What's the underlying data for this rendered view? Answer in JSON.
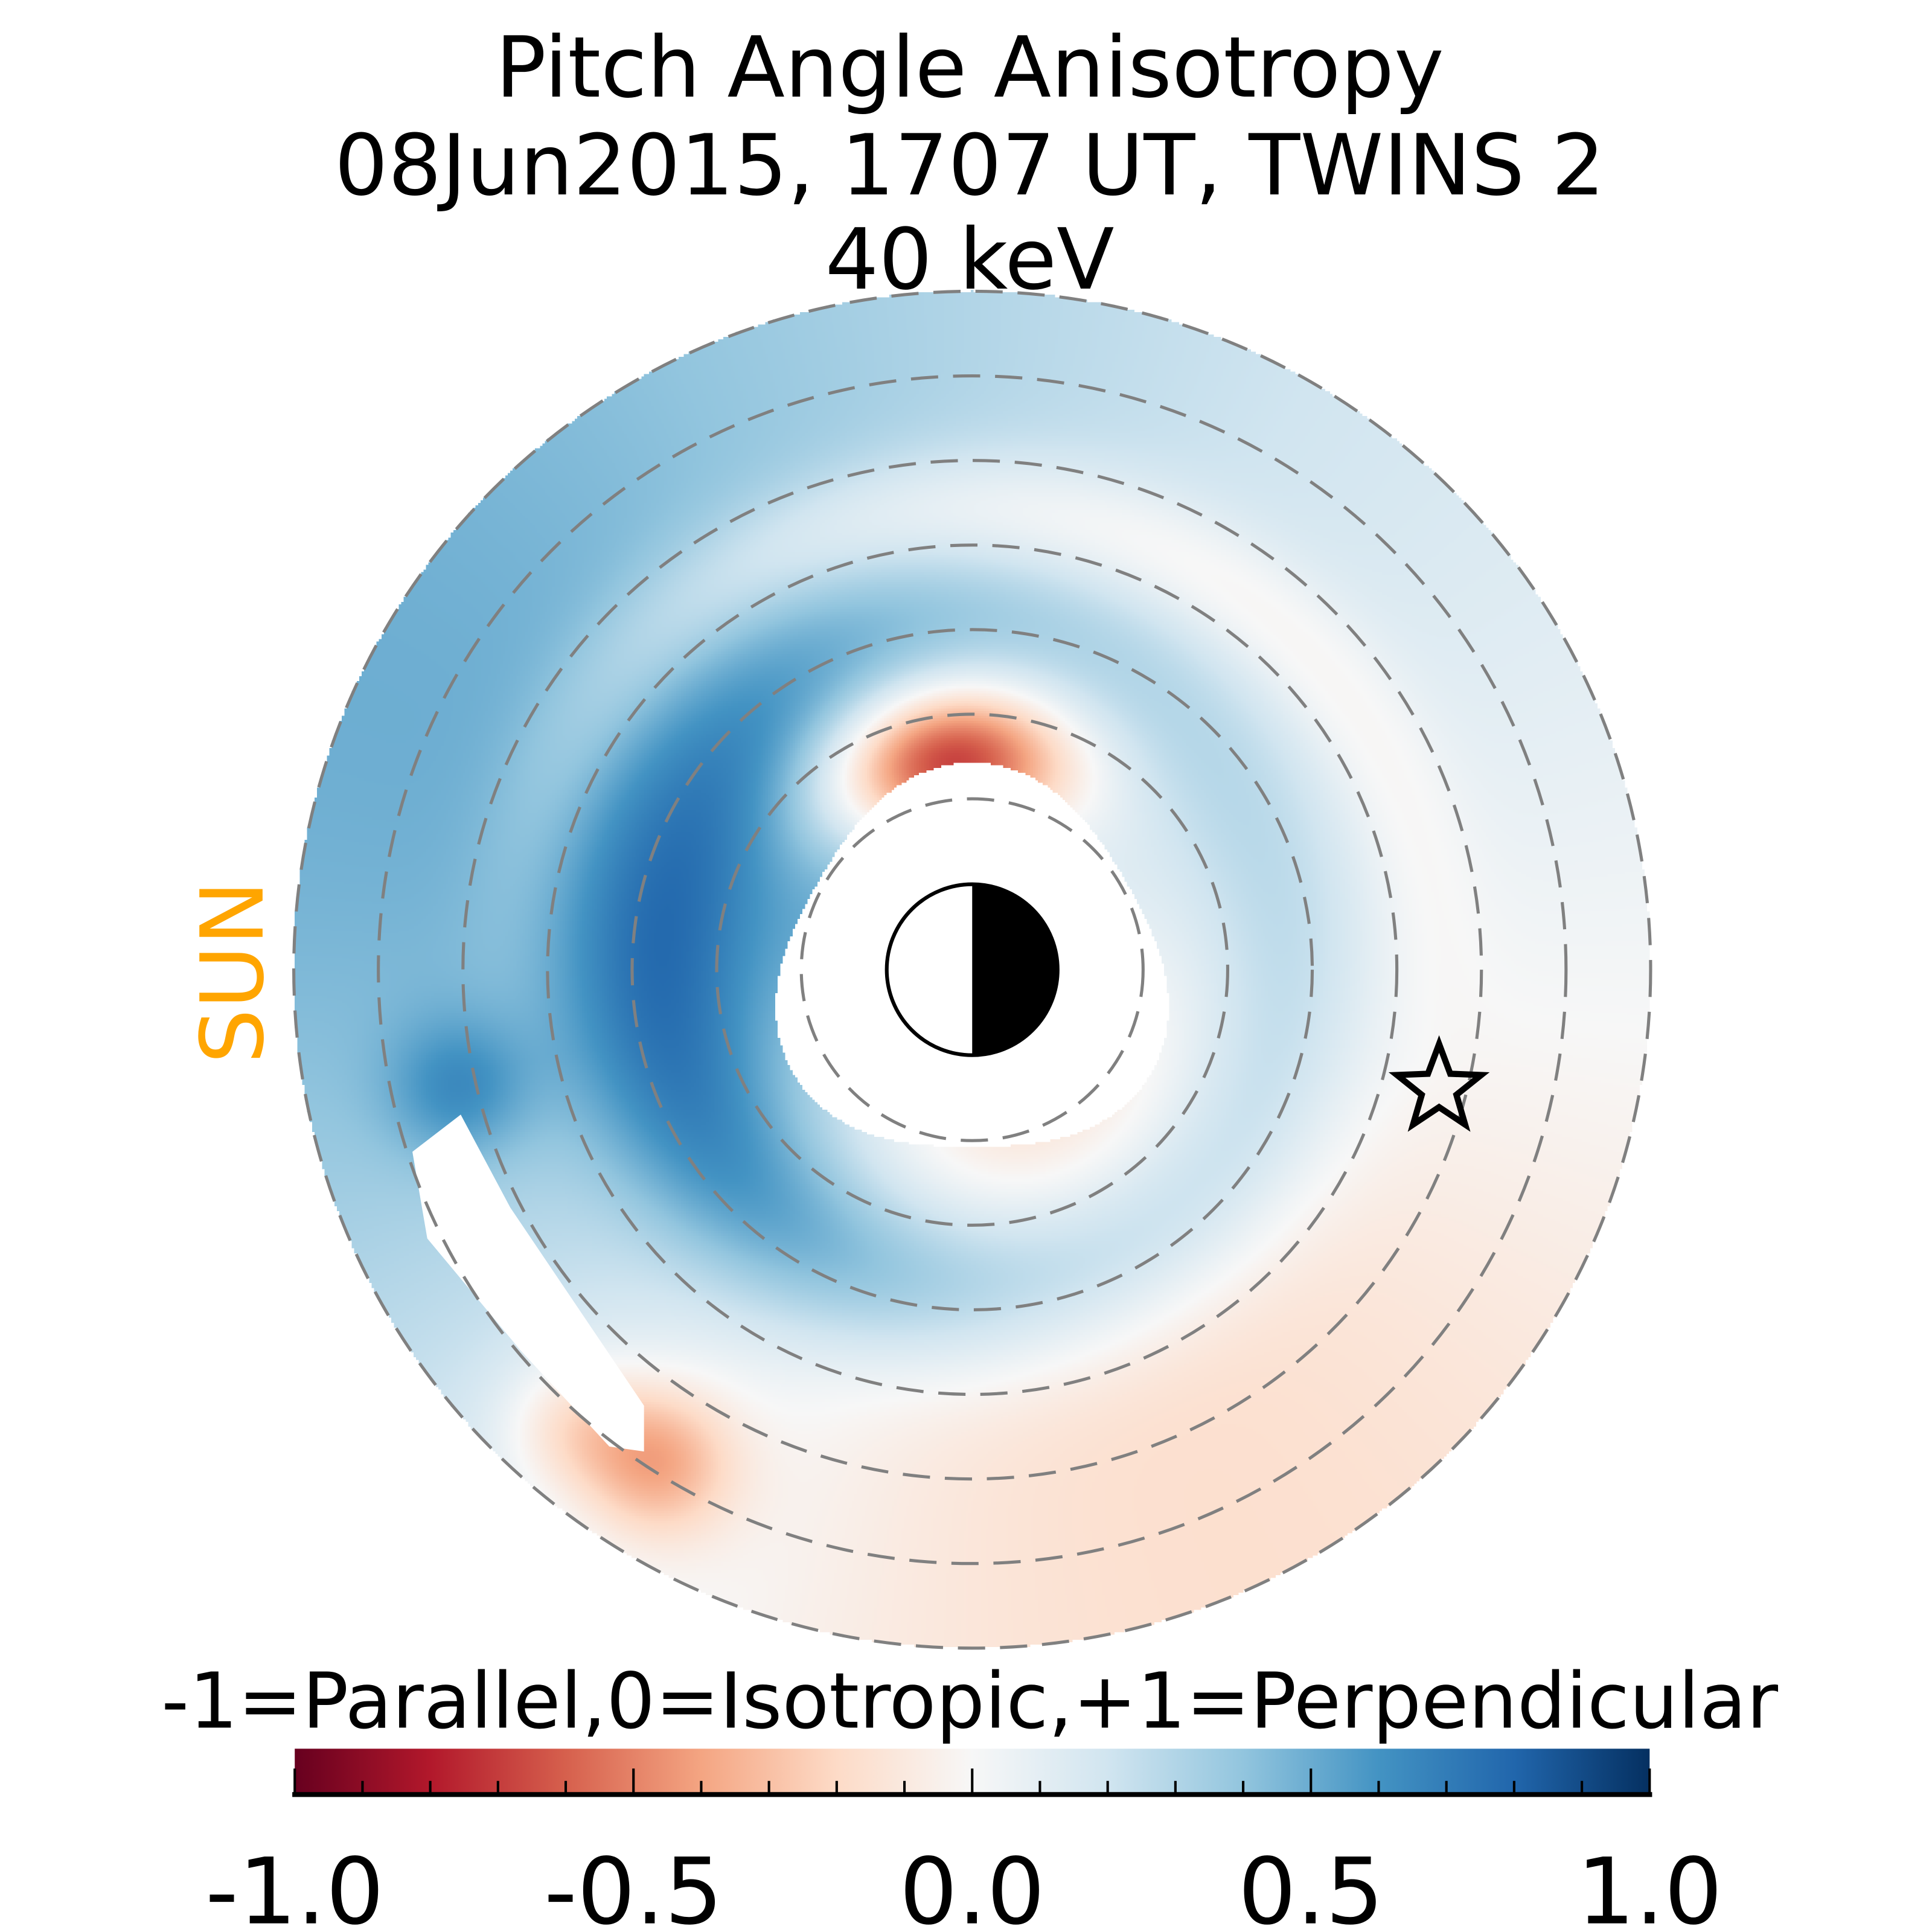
{
  "chart_data": {
    "type": "heatmap",
    "title": [
      "Pitch Angle Anisotropy",
      "08Jun2015, 1707 UT,  TWINS 2",
      "40 keV"
    ],
    "side_label": "SUN",
    "side_label_color": "#FFA500",
    "colorbar": {
      "label": "-1=Parallel,0=Isotropic,+1=Perpendicular",
      "range": [
        -1.0,
        1.0
      ],
      "ticks": [
        -1.0,
        -0.5,
        0.0,
        0.5,
        1.0
      ],
      "tick_labels": [
        "-1.0",
        "-0.5",
        "0.0",
        "0.5",
        "1.0"
      ],
      "minor_step": 0.1,
      "colormap": [
        "#67001f",
        "#b2182b",
        "#d6604d",
        "#f4a582",
        "#fddbc7",
        "#f7f7f7",
        "#d1e5f0",
        "#92c5de",
        "#4393c3",
        "#2166ac",
        "#053061"
      ]
    },
    "dashed_rings_count": 7,
    "markers": {
      "earth": "day-night-earth-icon",
      "spacecraft": "star-icon"
    },
    "regions": [
      {
        "name": "outer dayside (sun side)",
        "value": 0.45
      },
      {
        "name": "outer top",
        "value": 0.3
      },
      {
        "name": "outer right (night side)",
        "value": 0.02
      },
      {
        "name": "outer bottom",
        "value": -0.12
      },
      {
        "name": "inner ring left/bottom",
        "value": 0.5
      },
      {
        "name": "inner top near earth",
        "value": -0.75
      },
      {
        "name": "lower-left streak",
        "value": -0.45
      }
    ]
  }
}
